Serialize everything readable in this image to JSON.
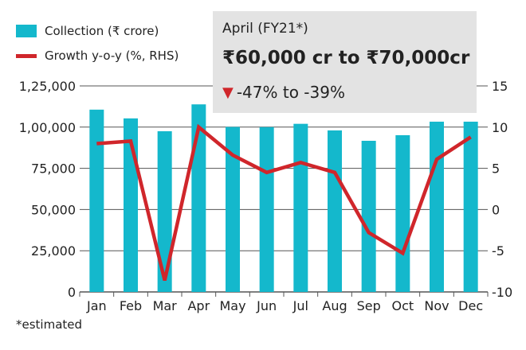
{
  "legend": {
    "collection": "Collection (₹ crore)",
    "growth": "Growth y-o-y (%, RHS)"
  },
  "infobox": {
    "title": "April (FY21*)",
    "range": "₹60,000 cr to ₹70,000cr",
    "growth_icon": "down-triangle-icon",
    "growth": "-47% to -39%"
  },
  "footnote": "*estimated",
  "colors": {
    "bar": "#14b8cc",
    "line": "#d0262b",
    "box": "#e3e3e3",
    "grid": "#555555"
  },
  "chart_data": {
    "type": "bar+line",
    "categories": [
      "Jan",
      "Feb",
      "Mar",
      "Apr",
      "May",
      "Jun",
      "Jul",
      "Aug",
      "Sep",
      "Oct",
      "Nov",
      "Dec"
    ],
    "series": [
      {
        "name": "Collection (₹ crore)",
        "axis": "left",
        "type": "bar",
        "values": [
          110600,
          105300,
          97500,
          113800,
          100100,
          100000,
          102000,
          98000,
          91700,
          95100,
          103300,
          103300
        ]
      },
      {
        "name": "Growth y-o-y (%, RHS)",
        "axis": "right",
        "type": "line",
        "values": [
          8.0,
          8.3,
          -8.6,
          10.0,
          6.6,
          4.5,
          5.7,
          4.5,
          -2.8,
          -5.3,
          6.1,
          8.8
        ]
      }
    ],
    "left_axis": {
      "range": [
        0,
        125000
      ],
      "ticks": [
        0,
        25000,
        50000,
        75000,
        100000,
        125000
      ],
      "tick_labels": [
        "0",
        "25,000",
        "50,000",
        "75,000",
        "1,00,000",
        "1,25,000"
      ]
    },
    "right_axis": {
      "range": [
        -10,
        15
      ],
      "ticks": [
        -10,
        -5,
        0,
        5,
        10,
        15
      ],
      "tick_labels": [
        "-10",
        "-5",
        "0",
        "5",
        "10",
        "15"
      ]
    },
    "grid": true,
    "legend_position": "top-left"
  }
}
